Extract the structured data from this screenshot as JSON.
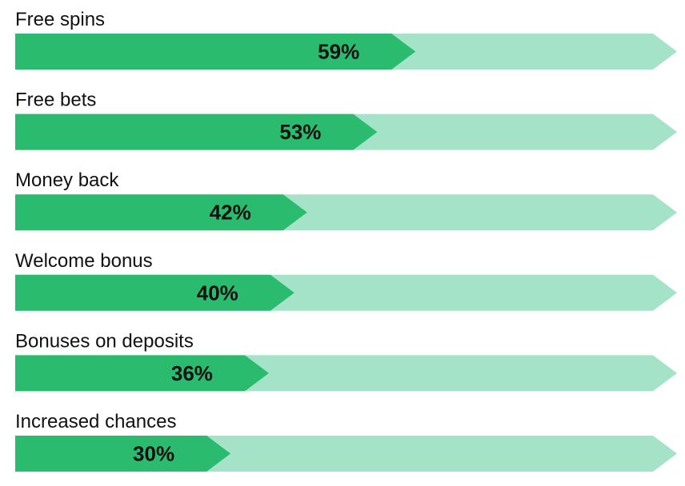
{
  "chart_data": {
    "type": "bar",
    "orientation": "horizontal",
    "categories": [
      "Free spins",
      "Free bets",
      "Money back",
      "Welcome bonus",
      "Bonuses on deposits",
      "Increased chances"
    ],
    "values": [
      59,
      53,
      42,
      40,
      36,
      30
    ],
    "value_labels": [
      "59%",
      "53%",
      "42%",
      "40%",
      "36%",
      "30%"
    ],
    "xlim": [
      0,
      100
    ],
    "grid": false,
    "legend": "none",
    "colors": {
      "bar_fill": "#2bbb6e",
      "bar_track": "#a4e3c7",
      "text": "#111111"
    }
  }
}
